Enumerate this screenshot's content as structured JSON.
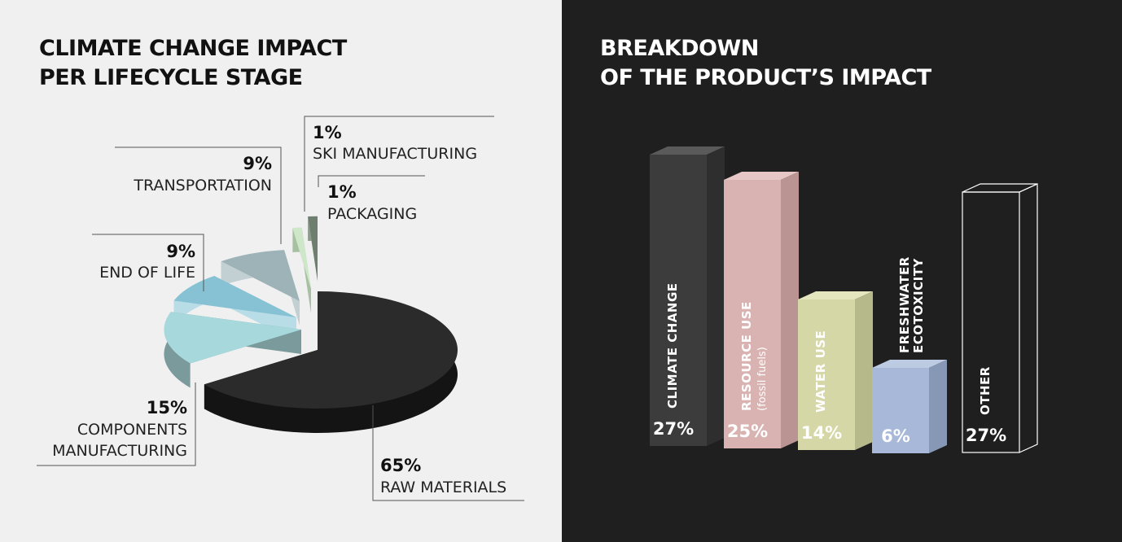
{
  "chart_data": [
    {
      "type": "pie",
      "title": [
        "CLIMATE CHANGE IMPACT",
        "PER LIFECYCLE STAGE"
      ],
      "slices": [
        {
          "pct": "65%",
          "label": [
            "RAW MATERIALS"
          ],
          "value": 65,
          "color": "#2b2b2b",
          "side": "#141414"
        },
        {
          "pct": "15%",
          "label": [
            "COMPONENTS",
            "MANUFACTURING"
          ],
          "value": 15,
          "color": "#a6d8dc",
          "side": "#7a9a9c"
        },
        {
          "pct": "9%",
          "label": [
            "END OF LIFE"
          ],
          "value": 9,
          "color": "#86c2d4",
          "side": "#b9dde6"
        },
        {
          "pct": "9%",
          "label": [
            "TRANSPORTATION"
          ],
          "value": 9,
          "color": "#9db3b8",
          "side": "#c3d0d3"
        },
        {
          "pct": "1%",
          "label": [
            "SKI MANUFACTURING"
          ],
          "value": 1,
          "color": "#cfe7c9",
          "side": "#a8c0a2"
        },
        {
          "pct": "1%",
          "label": [
            "PACKAGING"
          ],
          "value": 1,
          "color": "#6f7f6f",
          "side": "#8c9c8c"
        }
      ]
    },
    {
      "type": "bar",
      "title": [
        "BREAKDOWN",
        "OF THE PRODUCT’S IMPACT"
      ],
      "bars": [
        {
          "label": "CLIMATE CHANGE",
          "sub": "",
          "value": 27,
          "pct": "27%",
          "front": "#3c3c3c",
          "side": "#2e2e2e",
          "top": "#5a5a5a"
        },
        {
          "label": "RESOURCE  USE",
          "sub": "(fossil fuels)",
          "value": 25,
          "pct": "25%",
          "front": "#d8b3b1",
          "side": "#b99492",
          "top": "#e6c7c5"
        },
        {
          "label": "WATER USE",
          "sub": "",
          "value": 14,
          "pct": "14%",
          "front": "#d5d8a6",
          "side": "#b6b98a",
          "top": "#e4e6bd"
        },
        {
          "label_top": [
            "FRESHWATER",
            "ECOTOXICITY"
          ],
          "label": "",
          "sub": "",
          "value": 6,
          "pct": "6%",
          "front": "#a8b8d8",
          "side": "#8797b6",
          "top": "#bccae2"
        },
        {
          "label": "OTHER",
          "sub": "",
          "value": 27,
          "pct": "27%",
          "front": "none",
          "side": "none",
          "top": "none"
        }
      ]
    }
  ]
}
